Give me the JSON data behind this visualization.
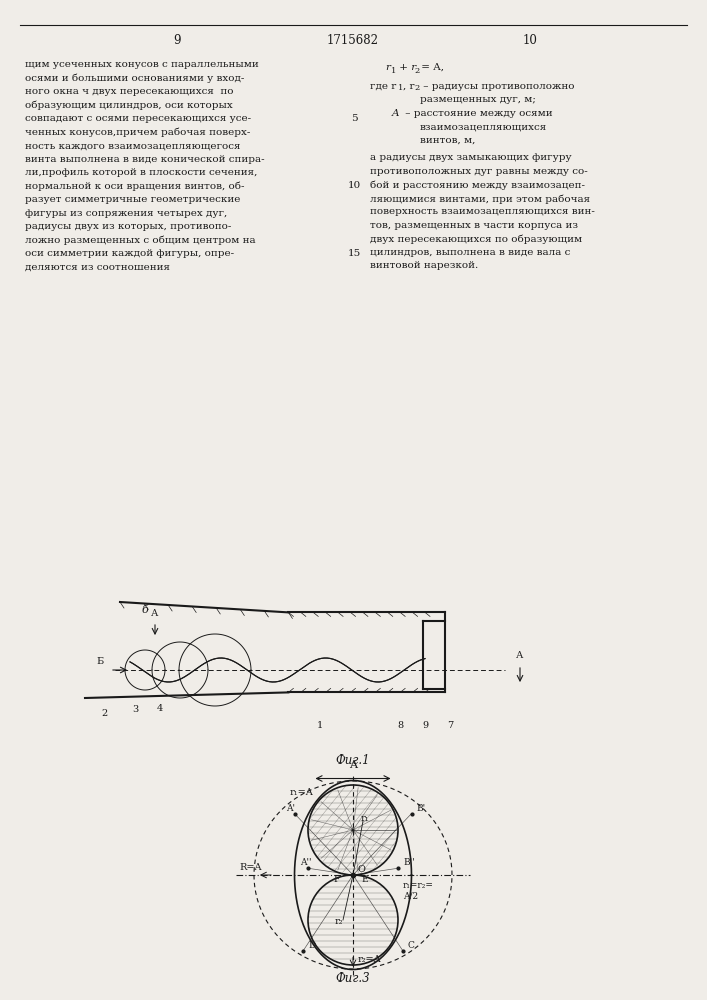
{
  "page_number_left": "9",
  "page_number_center": "1715682",
  "page_number_right": "10",
  "text_left": "щим усеченных конусов с параллельными\nосями и большими основаниями у вход-\nного окна ч двух пересекающихся  по\nобразующим цилиндров, оси которых\nсовпадают с осями пересекающихся усе-\nченных конусов,причем рабочая поверх-\nность каждого взаимозацепляющегося\nвинта выполнена в виде конической спира-\nли,профиль которой в плоскости сечения,\nнормальной к оси вращения винтов, об-\nразует симметричные геометрические\nфигуры из сопряжения четырех дуг,\nрадиусы двух из которых, противопо-\nложно размещенных с общим центром на\nоси симметрии каждой фигуры, опре-\nделяются из соотношения",
  "line_numbers": [
    5,
    10,
    15
  ],
  "formula_right": "r₁ + r₂ = A,",
  "formula_where": "где r₁, r₂ – радиусы противоположно\n       размещенных дуг, м;\n    A  – расстояние между осями\n       взаимозацепляющихся\n       винтов, м,",
  "text_right": "а радиусы двух замыкающих фигуру\nпротивоположных дуг равны между со-\nбой и расстоянию между взаимозацеп-\nляющимися винтами, при этом рабочая\nповерхность взаимозацепляющихся вин-\nтов, размещенных в части корпуса из\nдвух пересекающихся по образующим\nцилиндров, выполнена в виде вала с\nвинтовой нарезкой.",
  "fig1_label": "Фиг.1",
  "fig3_label": "Фиг.3",
  "background_color": "#f0ede8",
  "line_color": "#1a1a1a",
  "hatch_color": "#555555"
}
